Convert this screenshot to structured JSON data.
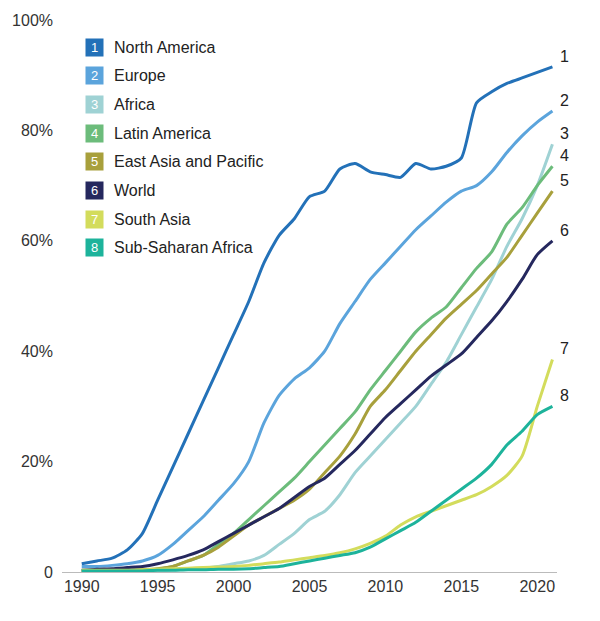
{
  "chart_data": {
    "type": "line",
    "x": [
      1990,
      1991,
      1992,
      1993,
      1994,
      1995,
      1996,
      1997,
      1998,
      1999,
      2000,
      2001,
      2002,
      2003,
      2004,
      2005,
      2006,
      2007,
      2008,
      2009,
      2010,
      2011,
      2012,
      2013,
      2014,
      2015,
      2016,
      2017,
      2018,
      2019,
      2020,
      2021
    ],
    "xlim": [
      1988.7,
      2021.3
    ],
    "xticks": [
      1990,
      1995,
      2000,
      2005,
      2010,
      2015,
      2020
    ],
    "ylim": [
      0,
      100
    ],
    "yticks": [
      0,
      {
        "value": 20,
        "label": "20%"
      },
      {
        "value": 40,
        "label": "40%"
      },
      {
        "value": 60,
        "label": "60%"
      },
      {
        "value": 80,
        "label": "80%"
      },
      {
        "value": 100,
        "label": "100%"
      }
    ],
    "grid": false,
    "legend": "top-left",
    "series": [
      {
        "name": "North America",
        "label": "1",
        "color": "#2371b8",
        "values": [
          1.5,
          2,
          2.5,
          4,
          7,
          13,
          19,
          25,
          31,
          37,
          43,
          49,
          56,
          61,
          64,
          68,
          69,
          73,
          74,
          72.5,
          72,
          71.5,
          74,
          73,
          73.5,
          75,
          85,
          87,
          88.5,
          89.5,
          90.5,
          91.5
        ]
      },
      {
        "name": "Europe",
        "label": "2",
        "color": "#5ba4dc",
        "values": [
          1,
          1,
          1.2,
          1.5,
          2,
          3,
          5,
          7.5,
          10,
          13,
          16,
          20,
          27,
          32,
          35,
          37,
          40,
          45,
          49,
          53,
          56,
          59,
          62,
          64.5,
          67,
          69,
          70,
          72.5,
          76,
          79,
          81.5,
          83.5
        ]
      },
      {
        "name": "Africa",
        "label": "3",
        "color": "#9fd2d4",
        "values": [
          0.3,
          0.3,
          0.3,
          0.3,
          0.3,
          0.3,
          0.4,
          0.5,
          0.7,
          1,
          1.5,
          2,
          3,
          5,
          7,
          9.5,
          11,
          14,
          18,
          21,
          24,
          27,
          30,
          34,
          38,
          43,
          48,
          53,
          59,
          64,
          70,
          77.5
        ]
      },
      {
        "name": "Latin America",
        "label": "4",
        "color": "#6cbc7b",
        "values": [
          0.2,
          0.2,
          0.2,
          0.3,
          0.4,
          0.5,
          1,
          2,
          3,
          5,
          7,
          9.5,
          12,
          14.5,
          17,
          20,
          23,
          26,
          29,
          33,
          36.5,
          40,
          43.5,
          46,
          48,
          51.5,
          55,
          58,
          63,
          66,
          70,
          73.5
        ]
      },
      {
        "name": "East Asia and Pacific",
        "label": "5",
        "color": "#a8a03c",
        "values": [
          0.2,
          0.2,
          0.2,
          0.3,
          0.4,
          0.6,
          1,
          2,
          3,
          4.5,
          6.5,
          8.5,
          10,
          11.5,
          13,
          15,
          18,
          21,
          25,
          30,
          33,
          36.5,
          40,
          43,
          46,
          48.5,
          51,
          54,
          57,
          61,
          65,
          69
        ]
      },
      {
        "name": "World",
        "label": "6",
        "color": "#25285e",
        "values": [
          0.3,
          0.5,
          0.6,
          0.8,
          1,
          1.5,
          2.2,
          3,
          4,
          5.5,
          7,
          8.5,
          10,
          11.5,
          13.5,
          15.5,
          17,
          19.5,
          22,
          25,
          28,
          30.5,
          33,
          35.5,
          37.5,
          39.5,
          42.5,
          45.5,
          49,
          53,
          57.5,
          60
        ]
      },
      {
        "name": "South Asia",
        "label": "7",
        "color": "#d3dc5c",
        "values": [
          0.3,
          0.3,
          0.3,
          0.3,
          0.4,
          0.5,
          0.6,
          0.7,
          0.8,
          0.9,
          1,
          1.2,
          1.5,
          1.8,
          2.2,
          2.6,
          3,
          3.5,
          4.2,
          5.2,
          6.5,
          8.5,
          10,
          11,
          12,
          13,
          14,
          15.5,
          17.5,
          21,
          30,
          38.5
        ]
      },
      {
        "name": "Sub-Saharan Africa",
        "label": "8",
        "color": "#1db39b",
        "values": [
          0.2,
          0.2,
          0.2,
          0.2,
          0.2,
          0.3,
          0.3,
          0.4,
          0.4,
          0.5,
          0.5,
          0.6,
          0.8,
          1,
          1.5,
          2,
          2.5,
          3,
          3.5,
          4.5,
          6,
          7.5,
          9,
          11,
          13,
          15,
          17,
          19.5,
          23,
          25.5,
          28.5,
          30
        ]
      }
    ]
  }
}
